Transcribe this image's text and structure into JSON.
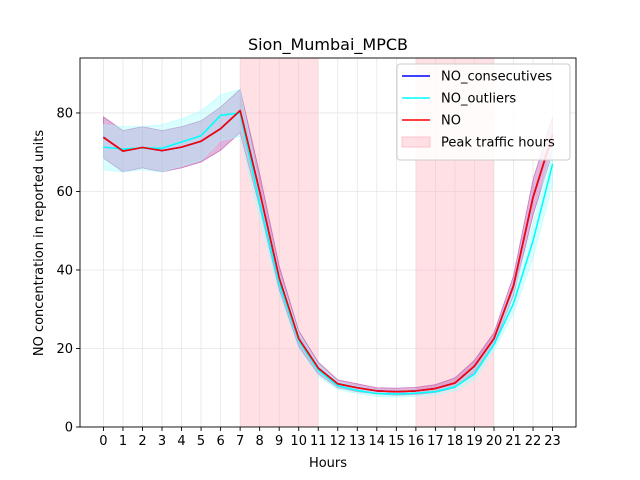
{
  "chart_data": {
    "type": "line",
    "title": "Sion_Mumbai_MPCB",
    "xlabel": "Hours",
    "ylabel": "NO concentration in reported units",
    "x": [
      0,
      1,
      2,
      3,
      4,
      5,
      6,
      7,
      8,
      9,
      10,
      11,
      12,
      13,
      14,
      15,
      16,
      17,
      18,
      19,
      20,
      21,
      22,
      23
    ],
    "xlim": [
      -1.2,
      24.2
    ],
    "ylim": [
      0,
      94
    ],
    "yticks": [
      0,
      20,
      40,
      60,
      80
    ],
    "grid": true,
    "legend_position": "top-right",
    "shaded_regions": [
      {
        "name": "Peak traffic hours",
        "x_start": 7,
        "x_end": 11,
        "color": "#ffb6c1"
      },
      {
        "name": "Peak traffic hours",
        "x_start": 16,
        "x_end": 20,
        "color": "#ffb6c1"
      }
    ],
    "series": [
      {
        "name": "NO_consecutives",
        "color": "#0000ff",
        "values": [
          73.8,
          70.3,
          71.2,
          70.4,
          71.3,
          72.8,
          76.0,
          80.6,
          60.0,
          38.0,
          22.5,
          15.0,
          11.0,
          10.0,
          9.2,
          9.0,
          9.2,
          9.8,
          11.2,
          15.5,
          22.5,
          36.0,
          58.5,
          74.5
        ],
        "band_lower": [
          68.5,
          65.0,
          66.0,
          65.0,
          66.0,
          67.5,
          70.5,
          75.0,
          56.0,
          35.0,
          20.5,
          13.5,
          10.0,
          9.0,
          8.4,
          8.1,
          8.3,
          8.8,
          10.0,
          14.0,
          21.0,
          33.5,
          54.0,
          70.0
        ],
        "band_upper": [
          79.0,
          75.5,
          76.5,
          75.5,
          76.5,
          78.0,
          81.5,
          86.0,
          64.5,
          41.0,
          24.5,
          16.5,
          12.0,
          11.0,
          10.0,
          9.9,
          10.1,
          10.8,
          12.5,
          17.0,
          24.0,
          38.5,
          63.0,
          79.0
        ],
        "band_color": "#b03ca0"
      },
      {
        "name": "NO_outliers",
        "color": "#00ffff",
        "values": [
          71.3,
          70.8,
          71.1,
          71.0,
          72.6,
          74.2,
          79.4,
          80.0,
          57.0,
          36.5,
          22.0,
          14.5,
          10.5,
          9.3,
          8.5,
          8.4,
          8.6,
          9.0,
          10.2,
          13.5,
          21.0,
          31.5,
          47.5,
          67.0
        ],
        "band_lower": [
          65.5,
          65.0,
          65.5,
          65.0,
          66.5,
          68.0,
          73.0,
          74.0,
          53.0,
          34.0,
          20.0,
          13.0,
          9.5,
          8.5,
          7.8,
          7.6,
          7.8,
          8.2,
          9.2,
          12.0,
          19.5,
          29.0,
          43.0,
          62.0
        ],
        "band_upper": [
          77.0,
          76.5,
          76.5,
          77.0,
          78.5,
          80.5,
          84.5,
          86.0,
          61.0,
          39.0,
          24.0,
          16.0,
          11.5,
          10.3,
          9.3,
          9.2,
          9.4,
          9.8,
          11.3,
          15.0,
          22.5,
          34.5,
          52.0,
          72.0
        ],
        "band_color": "#a0ffff"
      },
      {
        "name": "NO",
        "color": "#ff0000",
        "values": [
          73.8,
          70.3,
          71.2,
          70.4,
          71.3,
          72.8,
          76.0,
          80.6,
          60.0,
          38.0,
          22.5,
          15.0,
          11.0,
          10.0,
          9.2,
          9.0,
          9.2,
          9.8,
          11.2,
          15.5,
          22.5,
          36.0,
          58.5,
          74.5
        ]
      }
    ],
    "legend": [
      {
        "label": "NO_consecutives",
        "kind": "line",
        "color": "#0000ff"
      },
      {
        "label": "NO_outliers",
        "kind": "line",
        "color": "#00ffff"
      },
      {
        "label": "NO",
        "kind": "line",
        "color": "#ff0000"
      },
      {
        "label": "Peak traffic hours",
        "kind": "patch",
        "color": "#ffb6c1"
      }
    ]
  }
}
